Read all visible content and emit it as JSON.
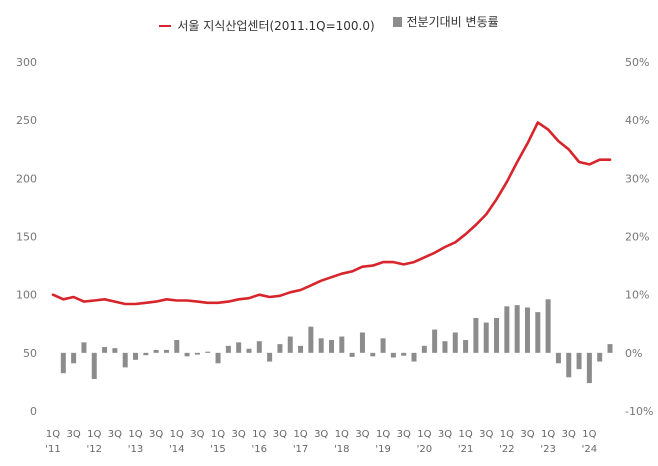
{
  "chart_data": {
    "type": "line+bar",
    "title": "",
    "legend": [
      {
        "name": "서울 지식산업센터(2011.1Q=100.0)",
        "type": "line",
        "color": "#d7252b"
      },
      {
        "name": "전분기대비 변동률",
        "type": "bar",
        "color": "#8c8c8c"
      }
    ],
    "legend_placement": "top-center",
    "x_quarter_labels": [
      "1Q",
      "3Q",
      "1Q",
      "3Q",
      "1Q",
      "3Q",
      "1Q",
      "3Q",
      "1Q",
      "3Q",
      "1Q",
      "3Q",
      "1Q",
      "3Q",
      "1Q",
      "3Q",
      "1Q",
      "3Q",
      "1Q",
      "3Q",
      "1Q",
      "3Q",
      "1Q",
      "3Q",
      "1Q",
      "3Q",
      "1Q"
    ],
    "x_year_labels": [
      "'11",
      "'12",
      "'13",
      "'14",
      "'15",
      "'16",
      "'17",
      "'18",
      "'19",
      "'20",
      "'21",
      "'22",
      "'23",
      "'24"
    ],
    "y_left": {
      "ticks": [
        "0",
        "50",
        "100",
        "150",
        "200",
        "250",
        "300"
      ],
      "range": [
        0,
        300
      ]
    },
    "y_right": {
      "ticks": [
        "-10%",
        "0%",
        "10%",
        "20%",
        "30%",
        "40%",
        "50%"
      ],
      "range": [
        -10,
        50
      ]
    },
    "series": [
      {
        "name": "서울 지식산업센터(2011.1Q=100.0)",
        "axis": "left",
        "values": [
          100,
          96,
          98,
          94,
          95,
          96,
          94,
          92,
          92,
          93,
          94,
          96,
          95,
          95,
          94,
          93,
          93,
          94,
          96,
          97,
          100,
          98,
          99,
          102,
          104,
          108,
          112,
          115,
          118,
          120,
          124,
          125,
          128,
          128,
          126,
          128,
          132,
          136,
          141,
          145,
          152,
          160,
          169,
          182,
          197,
          214,
          230,
          248,
          242,
          232,
          225,
          214,
          212,
          216,
          216
        ]
      },
      {
        "name": "전분기대비 변동률",
        "axis": "right",
        "values": [
          -3.5,
          -1.8,
          1.8,
          -4.5,
          1.0,
          0.8,
          -2.5,
          -1.2,
          -0.4,
          0.5,
          0.5,
          2.2,
          -0.6,
          -0.3,
          0.2,
          -1.8,
          1.2,
          1.8,
          0.7,
          2.0,
          -1.5,
          1.5,
          2.8,
          1.2,
          4.5,
          2.5,
          2.2,
          2.8,
          -0.7,
          3.5,
          -0.6,
          2.5,
          -0.8,
          -0.5,
          -1.5,
          1.2,
          4.0,
          2.0,
          3.5,
          2.2,
          6.0,
          5.2,
          6.0,
          8.0,
          8.2,
          7.8,
          7.0,
          9.2,
          -1.8,
          -4.2,
          -2.8,
          -5.2,
          -1.5,
          1.5
        ]
      }
    ],
    "grid": false
  }
}
